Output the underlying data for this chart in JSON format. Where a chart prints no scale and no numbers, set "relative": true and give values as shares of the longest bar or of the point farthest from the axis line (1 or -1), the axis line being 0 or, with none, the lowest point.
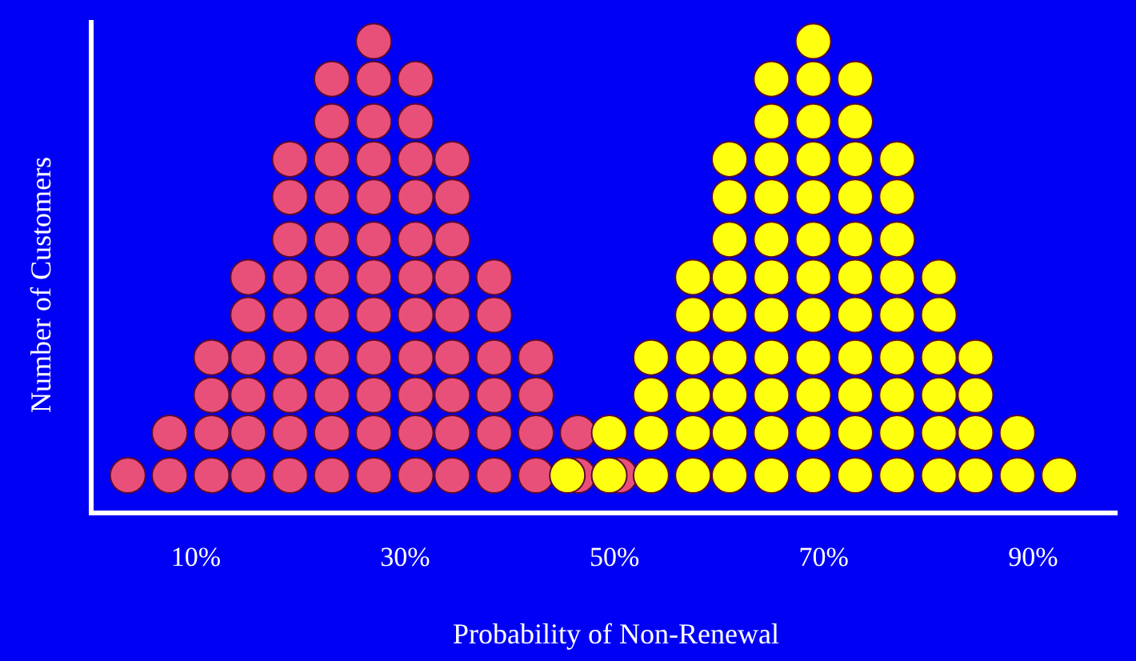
{
  "chart_data": {
    "type": "scatter",
    "relative": true,
    "xlabel": "Probability of Non-Renewal",
    "ylabel": "Number of Customers",
    "xlim": [
      0,
      98
    ],
    "xticks": [
      {
        "value": 10,
        "label": "10%"
      },
      {
        "value": 30,
        "label": "30%"
      },
      {
        "value": 50,
        "label": "50%"
      },
      {
        "value": 70,
        "label": "70%"
      },
      {
        "value": 90,
        "label": "90%"
      }
    ],
    "tick_labels": "x",
    "grid": false,
    "legend": false,
    "marker": "circle",
    "series": [
      {
        "color": "#ffff10",
        "x": [
          45.5,
          49.5,
          49.5,
          53.5,
          53.5,
          53.5,
          53.5,
          57.5,
          57.5,
          57.5,
          57.5,
          57.5,
          57.5,
          61,
          61,
          61,
          61,
          61,
          61,
          61,
          61,
          61,
          65,
          65,
          65,
          65,
          65,
          65,
          65,
          65,
          65,
          65,
          65,
          69,
          69,
          69,
          69,
          69,
          69,
          69,
          69,
          69,
          69,
          69,
          69,
          73,
          73,
          73,
          73,
          73,
          73,
          73,
          73,
          73,
          73,
          73,
          77,
          77,
          77,
          77,
          77,
          77,
          77,
          77,
          77,
          81,
          81,
          81,
          81,
          81,
          81,
          84.5,
          84.5,
          84.5,
          84.5,
          88.5,
          88.5,
          92.5
        ],
        "values": [
          0.08,
          0.08,
          0.17,
          0.08,
          0.17,
          0.25,
          0.33,
          0.08,
          0.17,
          0.25,
          0.33,
          0.42,
          0.5,
          0.08,
          0.17,
          0.25,
          0.33,
          0.42,
          0.5,
          0.58,
          0.67,
          0.75,
          0.08,
          0.17,
          0.25,
          0.33,
          0.42,
          0.5,
          0.58,
          0.67,
          0.75,
          0.83,
          0.92,
          0.08,
          0.17,
          0.25,
          0.33,
          0.42,
          0.5,
          0.58,
          0.67,
          0.75,
          0.83,
          0.92,
          1,
          0.08,
          0.17,
          0.25,
          0.33,
          0.42,
          0.5,
          0.58,
          0.67,
          0.75,
          0.83,
          0.92,
          0.08,
          0.17,
          0.25,
          0.33,
          0.42,
          0.5,
          0.58,
          0.67,
          0.75,
          0.08,
          0.17,
          0.25,
          0.33,
          0.42,
          0.5,
          0.08,
          0.17,
          0.25,
          0.33,
          0.08,
          0.17,
          0.08
        ]
      },
      {
        "color": "#e8507a",
        "x": [
          3.5,
          7.5,
          7.5,
          11.5,
          11.5,
          11.5,
          11.5,
          15,
          15,
          15,
          15,
          15,
          15,
          19,
          19,
          19,
          19,
          19,
          19,
          19,
          19,
          19,
          23,
          23,
          23,
          23,
          23,
          23,
          23,
          23,
          23,
          23,
          23,
          27,
          27,
          27,
          27,
          27,
          27,
          27,
          27,
          27,
          27,
          27,
          27,
          31,
          31,
          31,
          31,
          31,
          31,
          31,
          31,
          31,
          31,
          31,
          34.5,
          34.5,
          34.5,
          34.5,
          34.5,
          34.5,
          34.5,
          34.5,
          34.5,
          38.5,
          38.5,
          38.5,
          38.5,
          38.5,
          38.5,
          42.5,
          42.5,
          42.5,
          42.5,
          46.5,
          46.5,
          50.5
        ],
        "values": [
          0.08,
          0.08,
          0.17,
          0.08,
          0.17,
          0.25,
          0.33,
          0.08,
          0.17,
          0.25,
          0.33,
          0.42,
          0.5,
          0.08,
          0.17,
          0.25,
          0.33,
          0.42,
          0.5,
          0.58,
          0.67,
          0.75,
          0.08,
          0.17,
          0.25,
          0.33,
          0.42,
          0.5,
          0.58,
          0.67,
          0.75,
          0.83,
          0.92,
          0.08,
          0.17,
          0.25,
          0.33,
          0.42,
          0.5,
          0.58,
          0.67,
          0.75,
          0.83,
          0.92,
          1,
          0.08,
          0.17,
          0.25,
          0.33,
          0.42,
          0.5,
          0.58,
          0.67,
          0.75,
          0.83,
          0.92,
          0.08,
          0.17,
          0.25,
          0.33,
          0.42,
          0.5,
          0.58,
          0.67,
          0.75,
          0.08,
          0.17,
          0.25,
          0.33,
          0.42,
          0.5,
          0.08,
          0.17,
          0.25,
          0.33,
          0.08,
          0.17,
          0.08
        ]
      }
    ]
  }
}
